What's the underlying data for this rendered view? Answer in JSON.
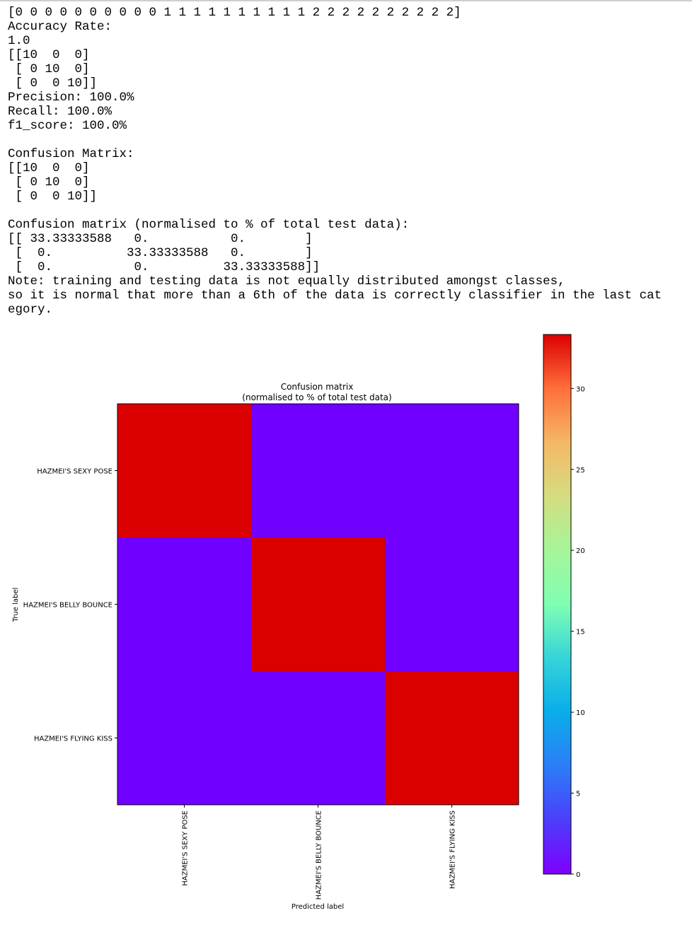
{
  "console": {
    "lines": [
      "[0 0 0 0 0 0 0 0 0 0 1 1 1 1 1 1 1 1 1 1 2 2 2 2 2 2 2 2 2 2]",
      "Accuracy Rate:",
      "1.0",
      "[[10  0  0]",
      " [ 0 10  0]",
      " [ 0  0 10]]",
      "Precision: 100.0%",
      "Recall: 100.0%",
      "f1_score: 100.0%",
      "",
      "Confusion Matrix:",
      "[[10  0  0]",
      " [ 0 10  0]",
      " [ 0  0 10]]",
      "",
      "Confusion matrix (normalised to % of total test data):",
      "[[ 33.33333588   0.           0.        ]",
      " [  0.          33.33333588   0.        ]",
      " [  0.           0.          33.33333588]]",
      "Note: training and testing data is not equally distributed amongst classes,",
      "so it is normal that more than a 6th of the data is correctly classifier in the last cat",
      "egory."
    ]
  },
  "chart_data": {
    "type": "heatmap",
    "title": "Confusion matrix",
    "subtitle": "(normalised to % of total test data)",
    "xlabel": "Predicted label",
    "ylabel": "True label",
    "x_categories": [
      "HAZMEI'S SEXY POSE",
      "HAZMEI'S BELLY BOUNCE",
      "HAZMEI'S FLYING KISS"
    ],
    "y_categories": [
      "HAZMEI'S SEXY POSE",
      "HAZMEI'S BELLY BOUNCE",
      "HAZMEI'S FLYING KISS"
    ],
    "values": [
      [
        33.33333588,
        0,
        0
      ],
      [
        0,
        33.33333588,
        0
      ],
      [
        0,
        0,
        33.33333588
      ]
    ],
    "colormap": "rainbow",
    "colors": {
      "low": "#7000ff",
      "high": "#db0000"
    },
    "colorbar": {
      "range": [
        0,
        33.33333588
      ],
      "ticks": [
        0,
        5,
        10,
        15,
        20,
        25,
        30
      ]
    }
  }
}
